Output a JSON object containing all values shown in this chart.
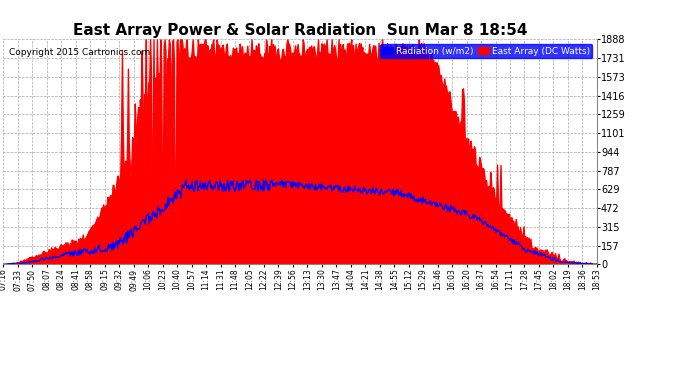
{
  "title": "East Array Power & Solar Radiation  Sun Mar 8 18:54",
  "copyright": "Copyright 2015 Cartronics.com",
  "legend_labels": [
    "Radiation (w/m2)",
    "East Array (DC Watts)"
  ],
  "legend_colors": [
    "blue",
    "red"
  ],
  "ylabel_right_ticks": [
    0.0,
    157.3,
    314.7,
    472.0,
    629.4,
    786.7,
    944.1,
    1101.4,
    1258.7,
    1416.1,
    1573.4,
    1730.8,
    1888.1
  ],
  "ymax": 1888.1,
  "ymin": 0.0,
  "background_color": "#ffffff",
  "plot_background": "#ffffff",
  "grid_color": "#aaaaaa",
  "title_fontsize": 11,
  "time_labels": [
    "07:16",
    "07:33",
    "07:50",
    "08:07",
    "08:24",
    "08:41",
    "08:58",
    "09:15",
    "09:32",
    "09:49",
    "10:06",
    "10:23",
    "10:40",
    "10:57",
    "11:14",
    "11:31",
    "11:48",
    "12:05",
    "12:22",
    "12:39",
    "12:56",
    "13:13",
    "13:30",
    "13:47",
    "14:04",
    "14:21",
    "14:38",
    "14:55",
    "15:12",
    "15:29",
    "15:46",
    "16:03",
    "16:20",
    "16:37",
    "16:54",
    "17:11",
    "17:28",
    "17:45",
    "18:02",
    "18:19",
    "18:36",
    "18:53"
  ]
}
